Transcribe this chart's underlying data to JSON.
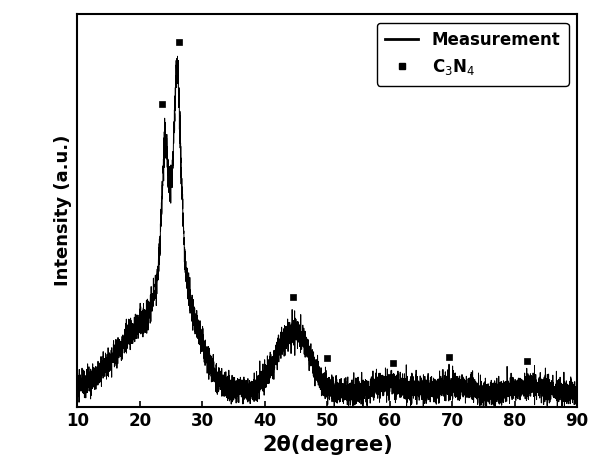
{
  "xlim": [
    10,
    90
  ],
  "xlabel": "2θ(degree)",
  "ylabel": "Intensity (a.u.)",
  "line_color": "#000000",
  "marker_color": "#000000",
  "background_color": "#ffffff",
  "xticks": [
    10,
    20,
    30,
    40,
    50,
    60,
    70,
    80,
    90
  ],
  "c3n4_peaks": [
    23.5,
    26.2,
    44.5,
    50.0,
    60.5,
    69.5,
    82.0
  ],
  "label_measurement": "Measurement",
  "label_phase": "C$_3$N$_4$",
  "xlabel_fontsize": 15,
  "ylabel_fontsize": 13,
  "tick_fontsize": 12,
  "legend_fontsize": 12
}
